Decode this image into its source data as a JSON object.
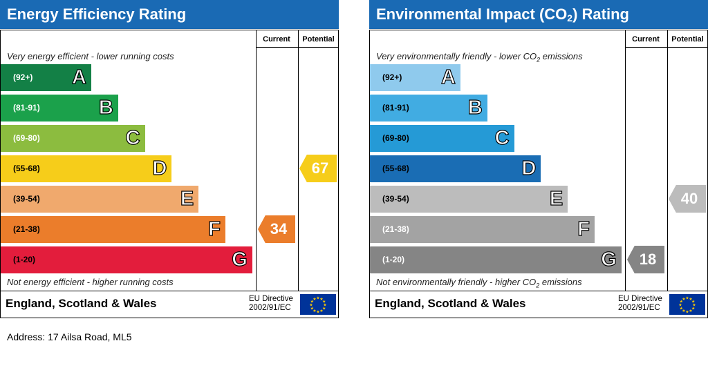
{
  "chart_data": [
    {
      "type": "bar",
      "title": "Energy Efficiency Rating",
      "columns": [
        "Current",
        "Potential"
      ],
      "top_note": "Very energy efficient - lower running costs",
      "bottom_note": "Not energy efficient - higher running costs",
      "bands": [
        {
          "letter": "A",
          "range": "(92+)",
          "color": "#138046",
          "text_color": "#ffffff"
        },
        {
          "letter": "B",
          "range": "(81-91)",
          "color": "#1ba14b",
          "text_color": "#ffffff"
        },
        {
          "letter": "C",
          "range": "(69-80)",
          "color": "#8cbc3f",
          "text_color": "#ffffff"
        },
        {
          "letter": "D",
          "range": "(55-68)",
          "color": "#f6cd1a",
          "text_color": "#000000"
        },
        {
          "letter": "E",
          "range": "(39-54)",
          "color": "#f0a96d",
          "text_color": "#000000"
        },
        {
          "letter": "F",
          "range": "(21-38)",
          "color": "#eb7d2b",
          "text_color": "#000000"
        },
        {
          "letter": "G",
          "range": "(1-20)",
          "color": "#e31d3c",
          "text_color": "#000000"
        }
      ],
      "current": {
        "value": 34,
        "label": "34",
        "band": "F",
        "color": "#eb7d2b"
      },
      "potential": {
        "value": 67,
        "label": "67",
        "band": "D",
        "color": "#f6cd1a"
      },
      "footer": {
        "country": "England, Scotland & Wales",
        "directive_line1": "EU Directive",
        "directive_line2": "2002/91/EC"
      }
    },
    {
      "type": "bar",
      "title": "Environmental Impact (CO2) Rating",
      "columns": [
        "Current",
        "Potential"
      ],
      "top_note": "Very environmentally friendly - lower CO2 emissions",
      "bottom_note": "Not environmentally friendly - higher CO2 emissions",
      "bands": [
        {
          "letter": "A",
          "range": "(92+)",
          "color": "#8fcaed",
          "text_color": "#000000"
        },
        {
          "letter": "B",
          "range": "(81-91)",
          "color": "#41ace2",
          "text_color": "#000000"
        },
        {
          "letter": "C",
          "range": "(69-80)",
          "color": "#259ad6",
          "text_color": "#000000"
        },
        {
          "letter": "D",
          "range": "(55-68)",
          "color": "#1a6db4",
          "text_color": "#000000"
        },
        {
          "letter": "E",
          "range": "(39-54)",
          "color": "#bcbcbc",
          "text_color": "#000000"
        },
        {
          "letter": "F",
          "range": "(21-38)",
          "color": "#a3a3a3",
          "text_color": "#ffffff"
        },
        {
          "letter": "G",
          "range": "(1-20)",
          "color": "#858585",
          "text_color": "#ffffff"
        }
      ],
      "current": {
        "value": 18,
        "label": "18",
        "band": "G",
        "color": "#858585"
      },
      "potential": {
        "value": 40,
        "label": "40",
        "band": "E",
        "color": "#bcbcbc"
      },
      "footer": {
        "country": "England, Scotland & Wales",
        "directive_line1": "EU Directive",
        "directive_line2": "2002/91/EC"
      }
    }
  ],
  "address": "Address: 17 Ailsa Road, ML5"
}
